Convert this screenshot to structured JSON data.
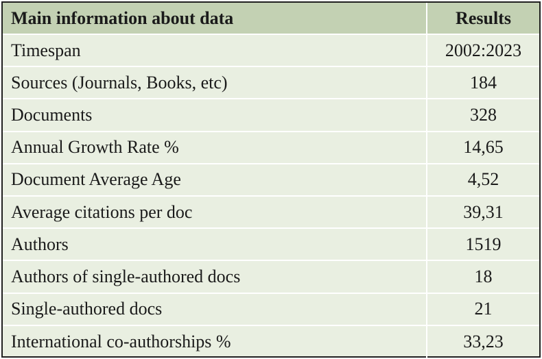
{
  "table": {
    "header": {
      "label": "Main information about data",
      "value": "Results"
    },
    "rows": [
      {
        "label": "Timespan",
        "value": "2002:2023"
      },
      {
        "label": "Sources (Journals, Books, etc)",
        "value": "184"
      },
      {
        "label": "Documents",
        "value": "328"
      },
      {
        "label": "Annual Growth Rate %",
        "value": "14,65"
      },
      {
        "label": "Document Average Age",
        "value": "4,52"
      },
      {
        "label": "Average citations per doc",
        "value": "39,31"
      },
      {
        "label": "Authors",
        "value": "1519"
      },
      {
        "label": "Authors of single-authored docs",
        "value": "18"
      },
      {
        "label": "Single-authored docs",
        "value": "21"
      },
      {
        "label": "International co-authorships %",
        "value": "33,23"
      }
    ],
    "colors": {
      "header_bg": "#c3d1b3",
      "body_bg": "#e9efe1",
      "border": "#1f1f1f"
    }
  }
}
